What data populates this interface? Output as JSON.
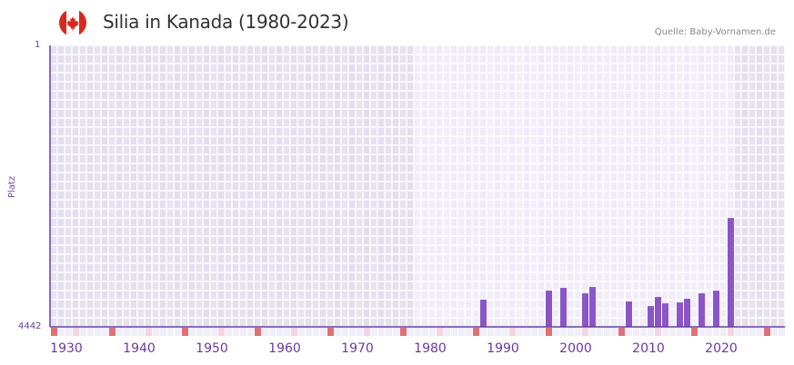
{
  "header": {
    "title": "Silia in Kanada (1980-2023)",
    "flag_icon": "canada-flag-icon",
    "source": "Quelle: Baby-Vornamen.de"
  },
  "colors": {
    "bar": "#8b55c8",
    "axis": "#6a3aa0",
    "grid_bg_outside": "#e3dfee",
    "grid_bg_inside": "#efebfa",
    "decade_marker": "#e07078",
    "halfdecade_marker": "#f4d4e0",
    "strip_bg": "#f1eefb"
  },
  "chart_data": {
    "type": "bar",
    "title": "Silia in Kanada (1980-2023)",
    "xlabel": "",
    "ylabel": "Platz",
    "y_inverted": true,
    "ylim": [
      1,
      4442
    ],
    "y_ticks": [
      "1",
      "4442"
    ],
    "x_range": [
      1930,
      2030
    ],
    "x_ticks": [
      "1930",
      "1940",
      "1950",
      "1960",
      "1970",
      "1980",
      "1990",
      "2000",
      "2010",
      "2020"
    ],
    "highlight_range": [
      1980,
      2023
    ],
    "grid": true,
    "legend": null,
    "categories": [
      "1989",
      "1998",
      "2000",
      "2003",
      "2004",
      "2009",
      "2012",
      "2013",
      "2014",
      "2016",
      "2017",
      "2019",
      "2021",
      "2023"
    ],
    "series": [
      {
        "name": "Platz",
        "values": [
          4013,
          3870,
          3827,
          3913,
          3813,
          4042,
          4114,
          3971,
          4071,
          4056,
          3999,
          3913,
          3870,
          2724
        ]
      }
    ]
  }
}
